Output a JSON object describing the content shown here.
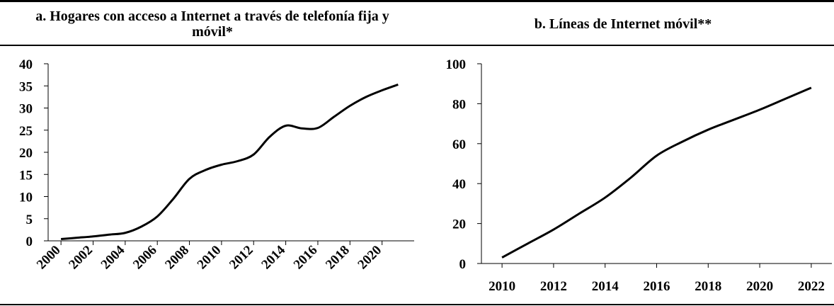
{
  "chart_data": [
    {
      "type": "line",
      "title": "a. Hogares con acceso a Internet a través de telefonía fija y móvil*",
      "x": [
        2000,
        2001,
        2002,
        2003,
        2004,
        2005,
        2006,
        2007,
        2008,
        2009,
        2010,
        2011,
        2012,
        2013,
        2014,
        2015,
        2016,
        2017,
        2018,
        2019,
        2020,
        2021
      ],
      "series": [
        {
          "name": null,
          "color": "#000000",
          "values": [
            0.4,
            0.7,
            1.0,
            1.4,
            1.8,
            3.2,
            5.5,
            9.5,
            14.0,
            16.0,
            17.2,
            18.0,
            19.5,
            23.5,
            26.0,
            25.4,
            25.5,
            28.0,
            30.5,
            32.5,
            34.0,
            35.3
          ]
        }
      ],
      "xlim": [
        1999.2,
        2022.0
      ],
      "xticks": [
        2000,
        2002,
        2004,
        2006,
        2008,
        2010,
        2012,
        2014,
        2016,
        2018,
        2020
      ],
      "xtick_rotation": -45,
      "ylim": [
        0,
        40
      ],
      "yticks": [
        0,
        5,
        10,
        15,
        20,
        25,
        30,
        35,
        40
      ]
    },
    {
      "type": "line",
      "title": "b. Líneas de Internet móvil**",
      "x": [
        2010,
        2011,
        2012,
        2013,
        2014,
        2015,
        2016,
        2017,
        2018,
        2019,
        2020,
        2021,
        2022
      ],
      "series": [
        {
          "name": null,
          "color": "#000000",
          "values": [
            3,
            10,
            17,
            25,
            33,
            43,
            54,
            61,
            67,
            72,
            77,
            82.5,
            88
          ]
        }
      ],
      "xlim": [
        2009.2,
        2022.8
      ],
      "xticks": [
        2010,
        2012,
        2014,
        2016,
        2018,
        2020,
        2022
      ],
      "ylim": [
        0,
        100
      ],
      "yticks": [
        0,
        20,
        40,
        60,
        80,
        100
      ]
    }
  ]
}
